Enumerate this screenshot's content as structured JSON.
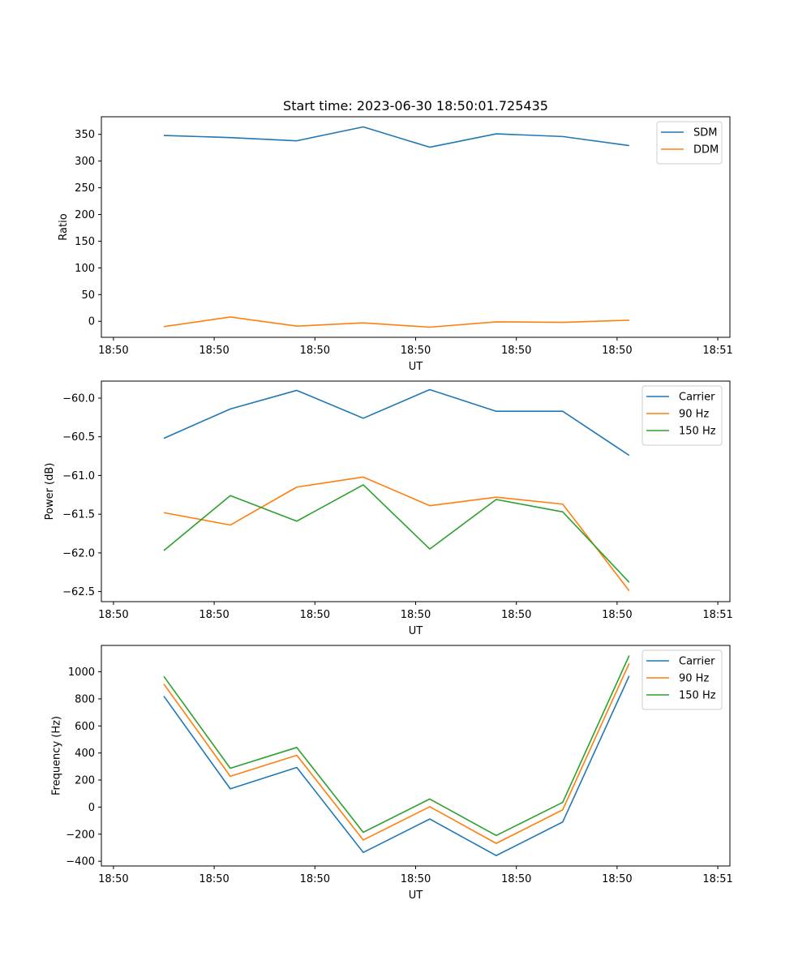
{
  "figure": {
    "title": "Start time: 2023-06-30 18:50:01.725435"
  },
  "chart_data": [
    {
      "type": "line",
      "title": "Start time: 2023-06-30 18:50:01.725435",
      "xlabel": "UT",
      "ylabel": "Ratio",
      "x": [
        "18:50",
        "18:50",
        "18:50",
        "18:50",
        "18:50",
        "18:50",
        "18:50",
        "18:50"
      ],
      "xlim": [
        -0.18,
        9.18
      ],
      "xticks": [
        0,
        1.5,
        3,
        4.5,
        6,
        7.5,
        9
      ],
      "xtick_labels": [
        "18:50",
        "18:50",
        "18:50",
        "18:50",
        "18:50",
        "18:50",
        "18:51"
      ],
      "ylim": [
        -30,
        383
      ],
      "yticks": [
        0,
        50,
        100,
        150,
        200,
        250,
        300,
        350
      ],
      "series": [
        {
          "name": "SDM",
          "color": "#1f77b4",
          "x": [
            0.75,
            1.74,
            2.73,
            3.72,
            4.71,
            5.7,
            6.69,
            7.68
          ],
          "values": [
            348,
            344,
            338,
            364,
            326,
            351,
            346,
            329
          ]
        },
        {
          "name": "DDM",
          "color": "#ff7f0e",
          "x": [
            0.75,
            1.74,
            2.73,
            3.72,
            4.71,
            5.7,
            6.69,
            7.68
          ],
          "values": [
            -10,
            8,
            -9,
            -3,
            -11,
            -1,
            -2,
            2
          ]
        }
      ],
      "legend": "upper right",
      "grid": false
    },
    {
      "type": "line",
      "xlabel": "UT",
      "ylabel": "Power (dB)",
      "x": [
        "18:50",
        "18:50",
        "18:50",
        "18:50",
        "18:50",
        "18:50",
        "18:50",
        "18:50"
      ],
      "xlim": [
        -0.18,
        9.18
      ],
      "xticks": [
        0,
        1.5,
        3,
        4.5,
        6,
        7.5,
        9
      ],
      "xtick_labels": [
        "18:50",
        "18:50",
        "18:50",
        "18:50",
        "18:50",
        "18:50",
        "18:51"
      ],
      "ylim": [
        -62.63,
        -59.78
      ],
      "yticks": [
        -62.5,
        -62.0,
        -61.5,
        -61.0,
        -60.5,
        -60.0
      ],
      "ytick_labels": [
        "−62.5",
        "−62.0",
        "−61.5",
        "−61.0",
        "−60.5",
        "−60.0"
      ],
      "series": [
        {
          "name": "Carrier",
          "color": "#1f77b4",
          "x": [
            0.75,
            1.74,
            2.73,
            3.72,
            4.71,
            5.7,
            6.69,
            7.68
          ],
          "values": [
            -60.52,
            -60.14,
            -59.9,
            -60.26,
            -59.89,
            -60.17,
            -60.17,
            -60.74
          ]
        },
        {
          "name": "90 Hz",
          "color": "#ff7f0e",
          "x": [
            0.75,
            1.74,
            2.73,
            3.72,
            4.71,
            5.7,
            6.69,
            7.68
          ],
          "values": [
            -61.48,
            -61.64,
            -61.15,
            -61.02,
            -61.39,
            -61.28,
            -61.37,
            -62.49
          ]
        },
        {
          "name": "150 Hz",
          "color": "#2ca02c",
          "x": [
            0.75,
            1.74,
            2.73,
            3.72,
            4.71,
            5.7,
            6.69,
            7.68
          ],
          "values": [
            -61.97,
            -61.26,
            -61.59,
            -61.12,
            -61.95,
            -61.31,
            -61.47,
            -62.38
          ]
        }
      ],
      "legend": "upper right",
      "grid": false
    },
    {
      "type": "line",
      "xlabel": "UT",
      "ylabel": "Frequency (Hz)",
      "x": [
        "18:50",
        "18:50",
        "18:50",
        "18:50",
        "18:50",
        "18:50",
        "18:50",
        "18:50"
      ],
      "xlim": [
        -0.18,
        9.18
      ],
      "xticks": [
        0,
        1.5,
        3,
        4.5,
        6,
        7.5,
        9
      ],
      "xtick_labels": [
        "18:50",
        "18:50",
        "18:50",
        "18:50",
        "18:50",
        "18:50",
        "18:51"
      ],
      "ylim": [
        -435,
        1195
      ],
      "yticks": [
        -400,
        -200,
        0,
        200,
        400,
        600,
        800,
        1000
      ],
      "ytick_labels": [
        "−400",
        "−200",
        "0",
        "200",
        "400",
        "600",
        "800",
        "1000"
      ],
      "series": [
        {
          "name": "Carrier",
          "color": "#1f77b4",
          "x": [
            0.75,
            1.74,
            2.73,
            3.72,
            4.71,
            5.7,
            6.69,
            7.68
          ],
          "values": [
            820,
            135,
            293,
            -335,
            -88,
            -358,
            -110,
            970
          ]
        },
        {
          "name": "90 Hz",
          "color": "#ff7f0e",
          "x": [
            0.75,
            1.74,
            2.73,
            3.72,
            4.71,
            5.7,
            6.69,
            7.68
          ],
          "values": [
            910,
            228,
            383,
            -243,
            3,
            -268,
            -20,
            1062
          ]
        },
        {
          "name": "150 Hz",
          "color": "#2ca02c",
          "x": [
            0.75,
            1.74,
            2.73,
            3.72,
            4.71,
            5.7,
            6.69,
            7.68
          ],
          "values": [
            966,
            287,
            441,
            -186,
            60,
            -210,
            35,
            1120
          ]
        }
      ],
      "legend": "upper right",
      "grid": false
    }
  ]
}
